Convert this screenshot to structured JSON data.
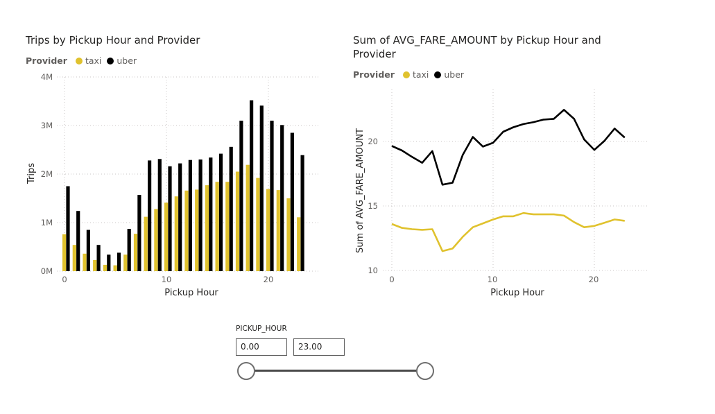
{
  "charts": {
    "left": {
      "title": "Trips by Pickup Hour and Provider",
      "legend_title": "Provider",
      "legend_items": [
        "taxi",
        "uber"
      ],
      "y_ticks": [
        "0M",
        "1M",
        "2M",
        "3M",
        "4M"
      ],
      "x_ticks": [
        "0",
        "10",
        "20"
      ],
      "xlabel": "Pickup Hour",
      "ylabel": "Trips"
    },
    "right": {
      "title_line1": "Sum of AVG_FARE_AMOUNT by Pickup Hour and",
      "title_line2": "Provider",
      "legend_title": "Provider",
      "legend_items": [
        "taxi",
        "uber"
      ],
      "y_ticks": [
        "10",
        "15",
        "20"
      ],
      "x_ticks": [
        "0",
        "10",
        "20"
      ],
      "xlabel": "Pickup Hour",
      "ylabel": "Sum of AVG_FARE_AMOUNT"
    }
  },
  "colors": {
    "taxi": "#E0C22E",
    "uber": "#000000",
    "grid": "#c8c6c4"
  },
  "chart_data": [
    {
      "type": "bar",
      "title": "Trips by Pickup Hour and Provider",
      "xlabel": "Pickup Hour",
      "ylabel": "Trips",
      "ylim": [
        0,
        4000000
      ],
      "grid": true,
      "legend_position": "top-left",
      "x": [
        0,
        1,
        2,
        3,
        4,
        5,
        6,
        7,
        8,
        9,
        10,
        11,
        12,
        13,
        14,
        15,
        16,
        17,
        18,
        19,
        20,
        21,
        22,
        23
      ],
      "series": [
        {
          "name": "taxi",
          "values": [
            760000,
            540000,
            360000,
            230000,
            130000,
            120000,
            340000,
            770000,
            1120000,
            1280000,
            1410000,
            1540000,
            1660000,
            1680000,
            1770000,
            1840000,
            1840000,
            2050000,
            2190000,
            1920000,
            1690000,
            1670000,
            1500000,
            1110000
          ]
        },
        {
          "name": "uber",
          "values": [
            1750000,
            1240000,
            850000,
            540000,
            340000,
            380000,
            870000,
            1570000,
            2280000,
            2310000,
            2160000,
            2220000,
            2290000,
            2300000,
            2340000,
            2420000,
            2560000,
            3100000,
            3520000,
            3410000,
            3100000,
            3010000,
            2850000,
            2390000
          ]
        }
      ]
    },
    {
      "type": "line",
      "title": "Sum of AVG_FARE_AMOUNT by Pickup Hour and Provider",
      "xlabel": "Pickup Hour",
      "ylabel": "Sum of AVG_FARE_AMOUNT",
      "ylim": [
        10,
        24
      ],
      "xlim": [
        0,
        23
      ],
      "grid": true,
      "legend_position": "top-left",
      "x": [
        0,
        1,
        2,
        3,
        4,
        5,
        6,
        7,
        8,
        9,
        10,
        11,
        12,
        13,
        14,
        15,
        16,
        17,
        18,
        19,
        20,
        21,
        22,
        23
      ],
      "series": [
        {
          "name": "taxi",
          "values": [
            13.6,
            13.3,
            13.2,
            13.15,
            13.2,
            11.5,
            11.7,
            12.6,
            13.35,
            13.65,
            13.95,
            14.2,
            14.2,
            14.45,
            14.35,
            14.35,
            14.35,
            14.25,
            13.75,
            13.35,
            13.45,
            13.7,
            13.95,
            13.85
          ]
        },
        {
          "name": "uber",
          "values": [
            19.65,
            19.3,
            18.8,
            18.35,
            19.25,
            16.65,
            16.8,
            18.95,
            20.35,
            19.6,
            19.9,
            20.75,
            21.1,
            21.35,
            21.5,
            21.7,
            21.75,
            22.45,
            21.75,
            20.15,
            19.35,
            20.05,
            21.0,
            20.3
          ]
        }
      ]
    }
  ],
  "slicer": {
    "header": "PICKUP_HOUR",
    "min_value": "0.00",
    "max_value": "23.00",
    "range": [
      0,
      23
    ],
    "selected": [
      0,
      23
    ]
  }
}
